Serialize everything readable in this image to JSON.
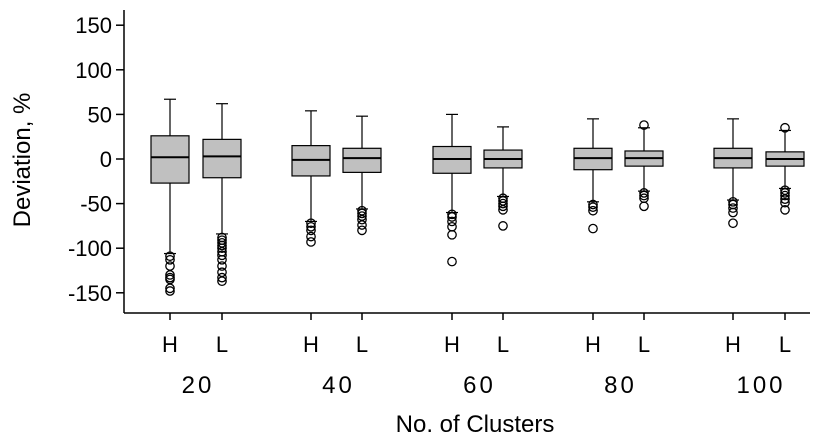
{
  "chart_data": {
    "type": "boxplot",
    "xlabel": "No. of Clusters",
    "ylabel": "Deviation, %",
    "ylim": [
      -175,
      160
    ],
    "yticks": [
      -150,
      -100,
      -50,
      0,
      50,
      100,
      150
    ],
    "groups": [
      "20",
      "40",
      "60",
      "80",
      "100"
    ],
    "subcategories": [
      "H",
      "L"
    ],
    "box_color": "#c0c0c0",
    "boxes": [
      {
        "group": "20",
        "sub": "H",
        "whisker_low": -106,
        "q1": -27,
        "median": 2,
        "q3": 26,
        "whisker_high": 67,
        "outliers": [
          -109,
          -113,
          -120,
          -130,
          -133,
          -135,
          -145,
          -148
        ]
      },
      {
        "group": "20",
        "sub": "L",
        "whisker_low": -84,
        "q1": -21,
        "median": 3,
        "q3": 22,
        "whisker_high": 62,
        "outliers": [
          -88,
          -91,
          -94,
          -97,
          -100,
          -104,
          -108,
          -113,
          -120,
          -127,
          -133,
          -137
        ]
      },
      {
        "group": "40",
        "sub": "H",
        "whisker_low": -70,
        "q1": -19,
        "median": -1,
        "q3": 15,
        "whisker_high": 54,
        "outliers": [
          -72,
          -76,
          -80,
          -87,
          -93
        ]
      },
      {
        "group": "40",
        "sub": "L",
        "whisker_low": -56,
        "q1": -15,
        "median": 1,
        "q3": 12,
        "whisker_high": 48,
        "outliers": [
          -58,
          -61,
          -64,
          -68,
          -74,
          -80
        ]
      },
      {
        "group": "60",
        "sub": "H",
        "whisker_low": -60,
        "q1": -16,
        "median": 0,
        "q3": 14,
        "whisker_high": 50,
        "outliers": [
          -62,
          -65,
          -70,
          -76,
          -85,
          -115
        ]
      },
      {
        "group": "60",
        "sub": "L",
        "whisker_low": -42,
        "q1": -10,
        "median": 0,
        "q3": 10,
        "whisker_high": 36,
        "outliers": [
          -44,
          -47,
          -50,
          -53,
          -57,
          -75
        ]
      },
      {
        "group": "80",
        "sub": "H",
        "whisker_low": -48,
        "q1": -12,
        "median": 1,
        "q3": 12,
        "whisker_high": 45,
        "outliers": [
          -51,
          -54,
          -58,
          -78
        ]
      },
      {
        "group": "80",
        "sub": "L",
        "whisker_low": -36,
        "q1": -8,
        "median": 1,
        "q3": 9,
        "whisker_high": 35,
        "outliers": [
          -38,
          -41,
          -44,
          -53,
          38
        ]
      },
      {
        "group": "100",
        "sub": "H",
        "whisker_low": -46,
        "q1": -10,
        "median": 1,
        "q3": 12,
        "whisker_high": 45,
        "outliers": [
          -48,
          -51,
          -55,
          -60,
          -72
        ]
      },
      {
        "group": "100",
        "sub": "L",
        "whisker_low": -33,
        "q1": -8,
        "median": 0,
        "q3": 8,
        "whisker_high": 32,
        "outliers": [
          -35,
          -38,
          -41,
          -45,
          -49,
          -57,
          35
        ]
      }
    ]
  }
}
